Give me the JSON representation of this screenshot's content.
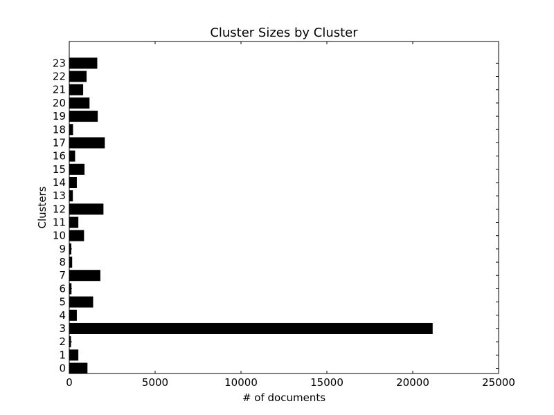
{
  "chart_data": {
    "type": "bar",
    "orientation": "horizontal",
    "title": "Cluster Sizes by Cluster",
    "xlabel": "# of documents",
    "ylabel": "Clusters",
    "xlim": [
      0,
      25000
    ],
    "xticks": [
      0,
      5000,
      10000,
      15000,
      20000,
      25000
    ],
    "categories": [
      "0",
      "1",
      "2",
      "3",
      "4",
      "5",
      "6",
      "7",
      "8",
      "9",
      "10",
      "11",
      "12",
      "13",
      "14",
      "15",
      "16",
      "17",
      "18",
      "19",
      "20",
      "21",
      "22",
      "23"
    ],
    "values": [
      1050,
      520,
      90,
      21150,
      430,
      1380,
      120,
      1800,
      160,
      110,
      850,
      520,
      1980,
      200,
      430,
      880,
      330,
      2060,
      210,
      1650,
      1170,
      800,
      1000,
      1620
    ],
    "bar_color": "#000000",
    "grid": false
  }
}
